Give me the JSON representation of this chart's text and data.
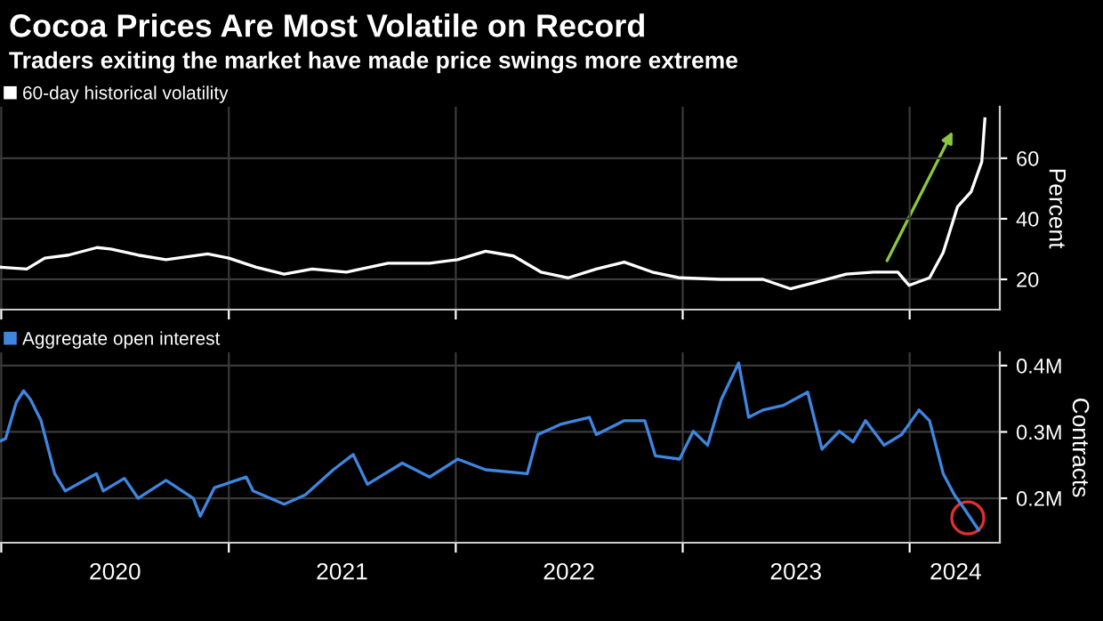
{
  "chart_data": [
    {
      "type": "line",
      "title": "Cocoa Prices Are Most Volatile on Record",
      "subtitle": "Traders exiting the market have made price swings more extreme",
      "ylabel": "Percent",
      "series": [
        {
          "name": "60-day historical volatility",
          "color": "#ffffff",
          "x": [
            "2020-01-01",
            "2020-02-11",
            "2020-03-11",
            "2020-04-18",
            "2020-06-03",
            "2020-06-25",
            "2020-08-08",
            "2020-09-22",
            "2020-11-28",
            "2021-01-01",
            "2021-02-14",
            "2021-03-31",
            "2021-05-15",
            "2021-07-09",
            "2021-09-14",
            "2021-11-20",
            "2022-01-04",
            "2022-02-18",
            "2022-04-04",
            "2022-05-18",
            "2022-07-01",
            "2022-08-15",
            "2022-09-29",
            "2022-11-13",
            "2022-12-27",
            "2023-03-04",
            "2023-05-10",
            "2023-06-23",
            "2023-08-08",
            "2023-09-21",
            "2023-11-04",
            "2023-12-13",
            "2023-12-31",
            "2024-02-02",
            "2024-02-24",
            "2024-03-18",
            "2024-04-09",
            "2024-04-26",
            "2024-05-01"
          ],
          "values": [
            24,
            23.4,
            27,
            28,
            30.5,
            30,
            28,
            26.5,
            28.4,
            27,
            24,
            21.7,
            23.4,
            22.4,
            25.3,
            25.3,
            26.5,
            29.3,
            27.7,
            22.4,
            20.5,
            23.4,
            25.7,
            22.4,
            20.5,
            20,
            20,
            16.9,
            19.3,
            21.7,
            22.4,
            22.4,
            18,
            20.5,
            28.9,
            44,
            49,
            58.8,
            73
          ]
        }
      ],
      "xlim": [
        "2019-12-30",
        "2024-05-25"
      ],
      "xticks": [
        {
          "value": "2020-01-01",
          "label": null
        },
        {
          "value": "2021-01-01",
          "label": null
        },
        {
          "value": "2022-01-01",
          "label": null
        },
        {
          "value": "2023-01-01",
          "label": null
        },
        {
          "value": "2024-01-01",
          "label": null
        }
      ],
      "ylim": [
        10,
        77
      ],
      "yticks": [
        20,
        40,
        60
      ],
      "grid": true,
      "legend": "top left",
      "tick_labels": "y"
    },
    {
      "type": "line",
      "ylabel": "Contracts",
      "series": [
        {
          "name": "Aggregate open interest",
          "color": "#3f86e0",
          "x": [
            "2020-01-01",
            "2020-01-08",
            "2020-01-25",
            "2020-02-06",
            "2020-02-17",
            "2020-03-05",
            "2020-03-27",
            "2020-04-13",
            "2020-06-02",
            "2020-06-13",
            "2020-07-17",
            "2020-08-08",
            "2020-09-22",
            "2020-11-05",
            "2020-11-16",
            "2020-12-09",
            "2021-01-29",
            "2021-02-09",
            "2021-03-31",
            "2021-05-04",
            "2021-06-18",
            "2021-07-20",
            "2021-08-12",
            "2021-10-07",
            "2021-11-20",
            "2022-01-04",
            "2022-02-18",
            "2022-04-26",
            "2022-05-13",
            "2022-06-20",
            "2022-08-04",
            "2022-08-15",
            "2022-09-29",
            "2022-11-01",
            "2022-11-18",
            "2022-12-27",
            "2023-01-18",
            "2023-02-10",
            "2023-03-04",
            "2023-04-01",
            "2023-04-17",
            "2023-05-10",
            "2023-06-12",
            "2023-07-21",
            "2023-08-13",
            "2023-09-10",
            "2023-10-02",
            "2023-10-22",
            "2023-11-21",
            "2023-12-19",
            "2024-01-16",
            "2024-02-02",
            "2024-02-24",
            "2024-03-13",
            "2024-03-29",
            "2024-04-21"
          ],
          "values": [
            0.287,
            0.29,
            0.344,
            0.362,
            0.349,
            0.317,
            0.237,
            0.211,
            0.237,
            0.211,
            0.23,
            0.2,
            0.227,
            0.2,
            0.173,
            0.216,
            0.232,
            0.211,
            0.191,
            0.205,
            0.243,
            0.266,
            0.221,
            0.253,
            0.232,
            0.259,
            0.243,
            0.237,
            0.296,
            0.312,
            0.322,
            0.296,
            0.317,
            0.317,
            0.264,
            0.259,
            0.301,
            0.28,
            0.349,
            0.404,
            0.322,
            0.333,
            0.34,
            0.36,
            0.274,
            0.301,
            0.285,
            0.317,
            0.28,
            0.296,
            0.333,
            0.317,
            0.237,
            0.205,
            0.184,
            0.152
          ]
        }
      ],
      "xlim": [
        "2019-12-30",
        "2024-05-25"
      ],
      "xticks": [
        {
          "value": "2020-01-01",
          "label": null
        },
        {
          "value": "2020-07-02",
          "label": "2020"
        },
        {
          "value": "2021-01-01",
          "label": null
        },
        {
          "value": "2021-07-02",
          "label": "2021"
        },
        {
          "value": "2022-01-01",
          "label": null
        },
        {
          "value": "2022-07-02",
          "label": "2022"
        },
        {
          "value": "2023-01-01",
          "label": null
        },
        {
          "value": "2023-07-02",
          "label": "2023"
        },
        {
          "value": "2024-01-01",
          "label": null
        },
        {
          "value": "2024-03-15",
          "label": "2024"
        }
      ],
      "ylim": [
        0.133,
        0.42
      ],
      "yticks": [
        {
          "value": 0.2,
          "label": "0.2M"
        },
        {
          "value": 0.3,
          "label": "0.3M"
        },
        {
          "value": 0.4,
          "label": "0.4M"
        }
      ],
      "grid": true,
      "legend": "top left"
    }
  ]
}
